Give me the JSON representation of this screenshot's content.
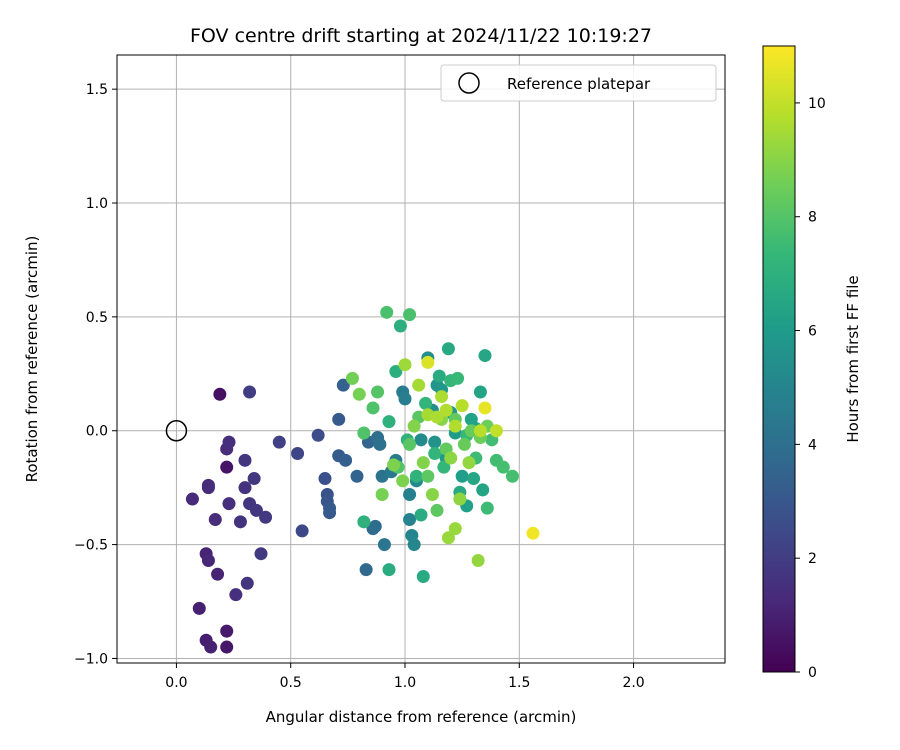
{
  "chart_data": {
    "type": "scatter",
    "title": "FOV centre drift starting at 2024/11/22 10:19:27",
    "xlabel": "Angular distance from reference (arcmin)",
    "ylabel": "Rotation from reference (arcmin)",
    "xlim": [
      -0.26,
      2.4
    ],
    "ylim": [
      -1.02,
      1.65
    ],
    "xticks": [
      0.0,
      0.5,
      1.0,
      1.5,
      2.0
    ],
    "xtick_labels": [
      "0.0",
      "0.5",
      "1.0",
      "1.5",
      "2.0"
    ],
    "yticks": [
      -1.0,
      -0.5,
      0.0,
      0.5,
      1.0,
      1.5
    ],
    "ytick_labels": [
      "−1.0",
      "−0.5",
      "0.0",
      "0.5",
      "1.0",
      "1.5"
    ],
    "grid": true,
    "legend": {
      "position": "top-right",
      "label": "Reference platepar"
    },
    "reference_point": {
      "x": 0.0,
      "y": 0.0
    },
    "colorbar": {
      "label": "Hours from first FF file",
      "range": [
        0,
        11
      ],
      "ticks": [
        0,
        2,
        4,
        6,
        8,
        10
      ],
      "tick_labels": [
        "0",
        "2",
        "4",
        "6",
        "8",
        "10"
      ],
      "colormap": [
        "#440154",
        "#482878",
        "#3e4989",
        "#31688e",
        "#26828e",
        "#1f9e89",
        "#35b779",
        "#6ece58",
        "#b5de2b",
        "#fde725"
      ]
    },
    "points": [
      [
        0.19,
        0.16,
        0.5
      ],
      [
        0.22,
        -0.16,
        0.6
      ],
      [
        0.22,
        -0.95,
        0.7
      ],
      [
        0.22,
        -0.88,
        0.8
      ],
      [
        0.13,
        -0.92,
        0.9
      ],
      [
        0.15,
        -0.95,
        1.0
      ],
      [
        0.1,
        -0.78,
        1.0
      ],
      [
        0.18,
        -0.63,
        1.1
      ],
      [
        0.13,
        -0.54,
        1.1
      ],
      [
        0.14,
        -0.57,
        1.2
      ],
      [
        0.07,
        -0.3,
        1.3
      ],
      [
        0.14,
        -0.25,
        1.3
      ],
      [
        0.14,
        -0.24,
        1.4
      ],
      [
        0.17,
        -0.39,
        1.4
      ],
      [
        0.22,
        -0.08,
        1.4
      ],
      [
        0.23,
        -0.05,
        1.5
      ],
      [
        0.23,
        -0.32,
        1.5
      ],
      [
        0.26,
        -0.72,
        1.5
      ],
      [
        0.28,
        -0.4,
        1.6
      ],
      [
        0.3,
        -0.25,
        1.6
      ],
      [
        0.31,
        -0.67,
        1.7
      ],
      [
        0.3,
        -0.13,
        1.7
      ],
      [
        0.32,
        -0.32,
        1.7
      ],
      [
        0.35,
        -0.35,
        1.8
      ],
      [
        0.34,
        -0.21,
        1.8
      ],
      [
        0.37,
        -0.54,
        1.9
      ],
      [
        0.39,
        -0.38,
        1.9
      ],
      [
        0.32,
        0.17,
        2.0
      ],
      [
        0.45,
        -0.05,
        2.1
      ],
      [
        0.53,
        -0.1,
        2.3
      ],
      [
        0.55,
        -0.44,
        2.4
      ],
      [
        0.62,
        -0.02,
        2.6
      ],
      [
        0.65,
        -0.21,
        2.7
      ],
      [
        0.66,
        -0.28,
        2.8
      ],
      [
        0.66,
        -0.31,
        2.9
      ],
      [
        0.67,
        -0.36,
        3.0
      ],
      [
        0.67,
        -0.34,
        3.1
      ],
      [
        0.71,
        0.05,
        3.1
      ],
      [
        0.71,
        -0.11,
        3.2
      ],
      [
        0.74,
        -0.13,
        3.3
      ],
      [
        0.73,
        0.2,
        3.4
      ],
      [
        0.79,
        -0.2,
        3.5
      ],
      [
        0.84,
        -0.05,
        3.6
      ],
      [
        0.83,
        -0.61,
        3.7
      ],
      [
        0.86,
        -0.43,
        3.8
      ],
      [
        0.87,
        -0.42,
        3.9
      ],
      [
        0.88,
        -0.03,
        4.0
      ],
      [
        0.89,
        -0.06,
        4.1
      ],
      [
        0.9,
        -0.2,
        4.2
      ],
      [
        0.91,
        -0.5,
        4.3
      ],
      [
        0.94,
        -0.18,
        4.4
      ],
      [
        0.96,
        -0.13,
        4.5
      ],
      [
        0.99,
        0.17,
        4.6
      ],
      [
        1.0,
        0.14,
        4.7
      ],
      [
        1.02,
        -0.28,
        4.8
      ],
      [
        1.02,
        -0.39,
        4.9
      ],
      [
        1.03,
        -0.46,
        5.0
      ],
      [
        1.04,
        -0.5,
        5.1
      ],
      [
        1.05,
        -0.22,
        5.2
      ],
      [
        1.07,
        -0.04,
        5.3
      ],
      [
        1.1,
        0.32,
        5.4
      ],
      [
        1.12,
        0.09,
        5.5
      ],
      [
        1.13,
        -0.05,
        5.6
      ],
      [
        1.14,
        0.2,
        5.7
      ],
      [
        1.16,
        0.18,
        5.8
      ],
      [
        1.18,
        -0.12,
        5.9
      ],
      [
        1.2,
        0.08,
        6.0
      ],
      [
        1.22,
        -0.01,
        6.0
      ],
      [
        1.25,
        -0.2,
        6.1
      ],
      [
        1.27,
        -0.33,
        6.2
      ],
      [
        1.29,
        0.05,
        6.3
      ],
      [
        1.31,
        0.01,
        6.3
      ],
      [
        1.33,
        0.17,
        6.4
      ],
      [
        1.34,
        -0.26,
        6.4
      ],
      [
        1.35,
        0.33,
        6.5
      ],
      [
        1.3,
        -0.21,
        6.5
      ],
      [
        1.24,
        -0.27,
        6.6
      ],
      [
        1.19,
        0.36,
        6.6
      ],
      [
        1.15,
        0.24,
        6.7
      ],
      [
        1.08,
        -0.64,
        6.7
      ],
      [
        1.07,
        -0.37,
        6.8
      ],
      [
        0.93,
        -0.61,
        6.8
      ],
      [
        0.96,
        0.26,
        6.9
      ],
      [
        0.98,
        0.46,
        6.9
      ],
      [
        0.93,
        0.04,
        7.0
      ],
      [
        0.82,
        -0.4,
        7.0
      ],
      [
        1.01,
        -0.04,
        7.1
      ],
      [
        1.05,
        -0.2,
        7.1
      ],
      [
        1.09,
        0.12,
        7.2
      ],
      [
        1.13,
        -0.1,
        7.2
      ],
      [
        1.17,
        -0.16,
        7.3
      ],
      [
        1.2,
        0.22,
        7.3
      ],
      [
        1.23,
        0.23,
        7.4
      ],
      [
        1.27,
        -0.02,
        7.4
      ],
      [
        1.31,
        -0.12,
        7.5
      ],
      [
        1.36,
        -0.34,
        7.5
      ],
      [
        1.38,
        -0.04,
        7.6
      ],
      [
        1.4,
        -0.13,
        7.6
      ],
      [
        1.43,
        -0.16,
        7.7
      ],
      [
        1.47,
        -0.2,
        7.7
      ],
      [
        0.92,
        0.52,
        7.8
      ],
      [
        1.02,
        0.51,
        7.8
      ],
      [
        0.82,
        -0.01,
        7.9
      ],
      [
        0.86,
        0.1,
        7.9
      ],
      [
        0.88,
        0.17,
        8.0
      ],
      [
        0.97,
        -0.16,
        8.0
      ],
      [
        1.02,
        -0.06,
        8.1
      ],
      [
        1.06,
        0.06,
        8.1
      ],
      [
        1.1,
        -0.2,
        8.2
      ],
      [
        1.14,
        -0.35,
        8.2
      ],
      [
        1.18,
        -0.08,
        8.3
      ],
      [
        1.22,
        0.05,
        8.3
      ],
      [
        1.26,
        -0.06,
        8.4
      ],
      [
        1.29,
        0.0,
        8.4
      ],
      [
        1.33,
        -0.03,
        8.5
      ],
      [
        1.36,
        0.02,
        8.5
      ],
      [
        0.77,
        0.23,
        8.6
      ],
      [
        0.8,
        0.16,
        8.7
      ],
      [
        0.9,
        -0.28,
        8.7
      ],
      [
        0.95,
        -0.15,
        8.8
      ],
      [
        0.99,
        -0.22,
        8.8
      ],
      [
        1.04,
        0.02,
        8.9
      ],
      [
        1.08,
        -0.14,
        8.9
      ],
      [
        1.12,
        -0.28,
        9.0
      ],
      [
        1.16,
        0.05,
        9.0
      ],
      [
        1.2,
        -0.12,
        9.1
      ],
      [
        1.24,
        -0.3,
        9.1
      ],
      [
        1.28,
        -0.14,
        9.2
      ],
      [
        1.32,
        -0.57,
        9.2
      ],
      [
        1.19,
        -0.47,
        9.3
      ],
      [
        1.22,
        -0.43,
        9.3
      ],
      [
        1.0,
        0.29,
        9.4
      ],
      [
        1.06,
        0.2,
        9.5
      ],
      [
        1.1,
        0.07,
        9.5
      ],
      [
        1.14,
        0.06,
        9.6
      ],
      [
        1.16,
        0.15,
        9.6
      ],
      [
        1.18,
        0.09,
        9.7
      ],
      [
        1.22,
        0.02,
        9.7
      ],
      [
        1.25,
        0.11,
        9.8
      ],
      [
        1.33,
        0.0,
        9.8
      ],
      [
        1.4,
        0.0,
        10.0
      ],
      [
        1.1,
        0.3,
        10.4
      ],
      [
        1.35,
        0.1,
        10.6
      ],
      [
        1.56,
        -0.45,
        10.8
      ]
    ]
  }
}
